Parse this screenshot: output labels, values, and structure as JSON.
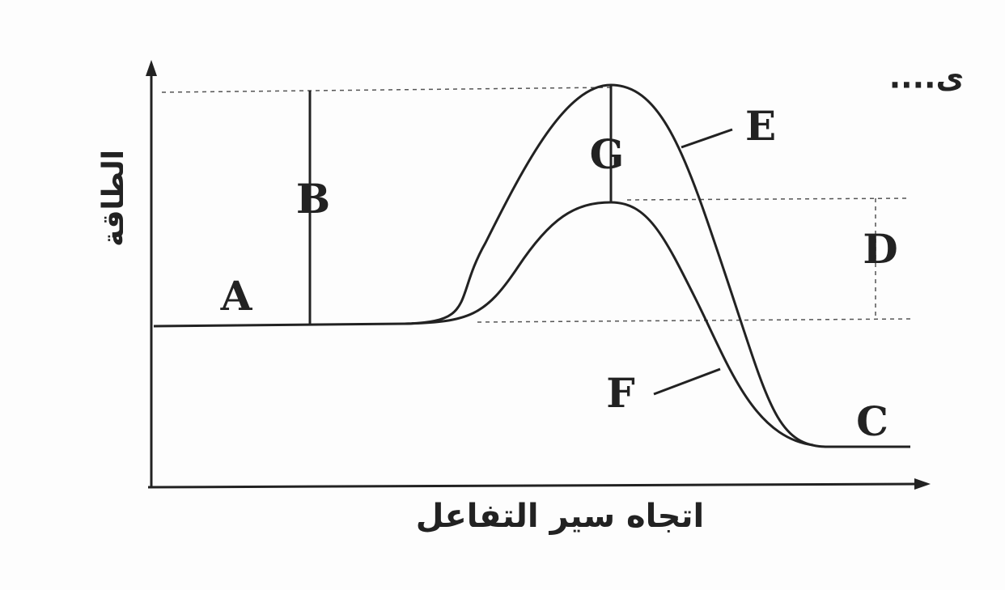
{
  "diagram": {
    "y_axis_label": "الطاقة",
    "x_axis_label": "اتجاه سير التفاعل",
    "labels": {
      "A": "A",
      "B": "B",
      "C": "C",
      "D": "D",
      "E": "E",
      "F": "F",
      "G": "G"
    },
    "corner_text": "....ى"
  }
}
